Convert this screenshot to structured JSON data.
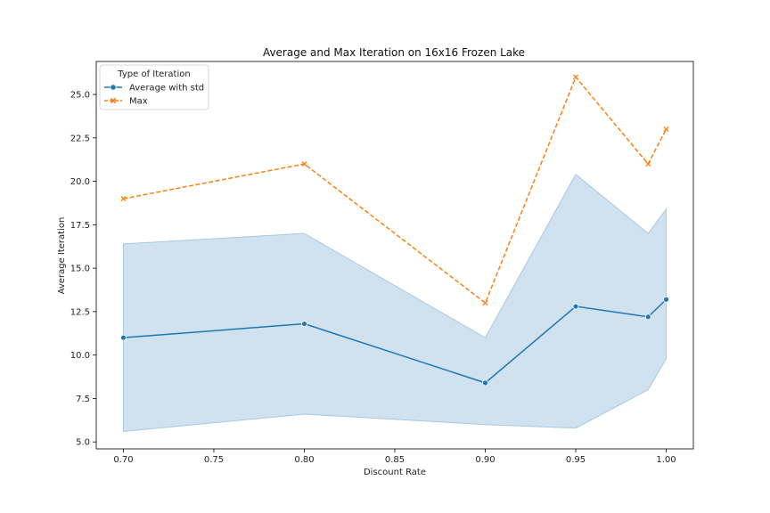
{
  "chart_data": {
    "type": "line",
    "title": "Average and Max Iteration on 16x16 Frozen Lake",
    "xlabel": "Discount Rate",
    "ylabel": "Average Iteration",
    "x": [
      0.7,
      0.8,
      0.9,
      0.95,
      0.99,
      1.0
    ],
    "xlim": [
      0.685,
      1.015
    ],
    "ylim": [
      4.6,
      26.9
    ],
    "x_ticks": [
      0.7,
      0.75,
      0.8,
      0.85,
      0.9,
      0.95,
      1.0
    ],
    "x_tick_labels": [
      "0.70",
      "0.75",
      "0.80",
      "0.85",
      "0.90",
      "0.95",
      "1.00"
    ],
    "y_ticks": [
      5.0,
      7.5,
      10.0,
      12.5,
      15.0,
      17.5,
      20.0,
      22.5,
      25.0
    ],
    "y_tick_labels": [
      "5.0",
      "7.5",
      "10.0",
      "12.5",
      "15.0",
      "17.5",
      "20.0",
      "22.5",
      "25.0"
    ],
    "grid": false,
    "legend": {
      "title": "Type of Iteration",
      "placement": "top-left"
    },
    "series": [
      {
        "name": "Average with std",
        "color": "#1f77b4",
        "marker": "circle",
        "line_style": "solid",
        "values": [
          11.0,
          11.8,
          8.4,
          12.8,
          12.2,
          13.2
        ],
        "band_lower": [
          5.6,
          6.6,
          6.0,
          5.8,
          8.0,
          9.8
        ],
        "band_upper": [
          16.4,
          17.0,
          11.0,
          20.4,
          17.0,
          18.4
        ],
        "band_color": "#a9c9e2"
      },
      {
        "name": "Max",
        "color": "#ff7f0e",
        "marker": "x",
        "line_style": "dashed",
        "values": [
          19.0,
          21.0,
          13.0,
          26.0,
          21.0,
          23.0
        ]
      }
    ]
  }
}
